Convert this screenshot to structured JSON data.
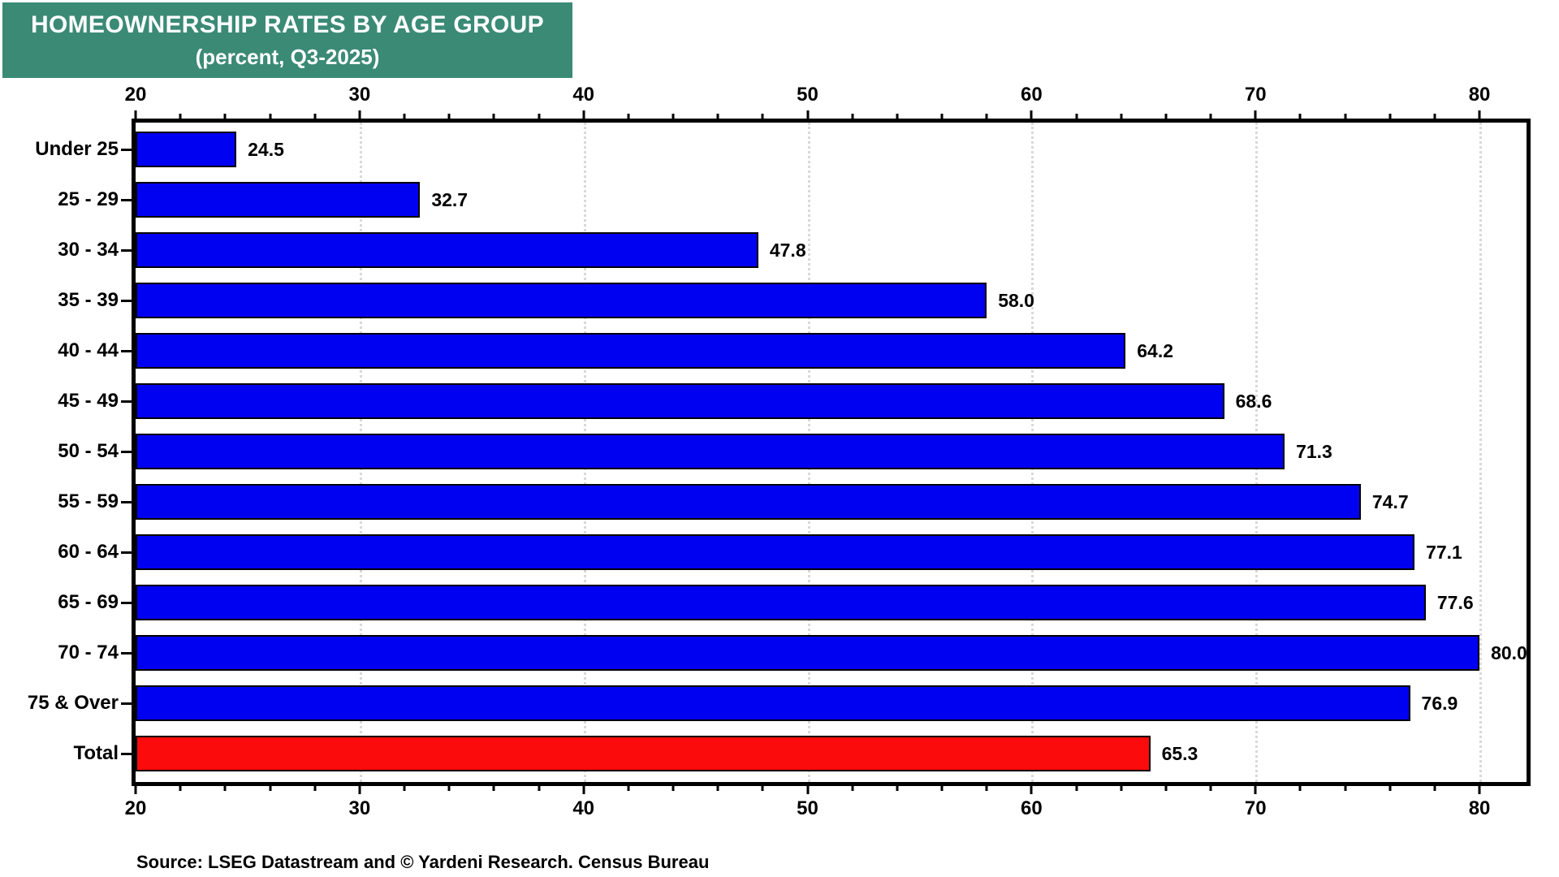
{
  "header": {
    "title_line1": "HOMEOWNERSHIP RATES BY AGE GROUP",
    "title_line2": "(percent, Q3-2025)"
  },
  "chart_data": {
    "type": "bar",
    "orientation": "horizontal",
    "title": "HOMEOWNERSHIP RATES BY AGE GROUP (percent, Q3-2025)",
    "categories": [
      "Under 25",
      "25 - 29",
      "30 - 34",
      "35 - 39",
      "40 - 44",
      "45 - 49",
      "50 - 54",
      "55 - 59",
      "60 - 64",
      "65 - 69",
      "70 - 74",
      "75 & Over",
      "Total"
    ],
    "values": [
      24.5,
      32.7,
      47.8,
      58.0,
      64.2,
      68.6,
      71.3,
      74.7,
      77.1,
      77.6,
      80.0,
      76.9,
      65.3
    ],
    "value_labels": [
      "24.5",
      "32.7",
      "47.8",
      "58.0",
      "64.2",
      "68.6",
      "71.3",
      "74.7",
      "77.1",
      "77.6",
      "80.0",
      "76.9",
      "65.3"
    ],
    "bar_colors": [
      "#0101f2",
      "#0101f2",
      "#0101f2",
      "#0101f2",
      "#0101f2",
      "#0101f2",
      "#0101f2",
      "#0101f2",
      "#0101f2",
      "#0101f2",
      "#0101f2",
      "#0101f2",
      "#fb0b0b"
    ],
    "xlim": [
      20,
      82.1
    ],
    "x_major_ticks": [
      20,
      30,
      40,
      50,
      60,
      70,
      80
    ],
    "x_minor_step": 2,
    "gridlines": [
      30,
      40,
      50,
      60,
      70,
      80
    ],
    "grid": true,
    "legend_position": "none",
    "xlabel": "",
    "ylabel": ""
  },
  "footer": {
    "source": "Source: LSEG Datastream and © Yardeni Research. Census Bureau"
  },
  "colors": {
    "title_bg": "#3b8a76",
    "title_text": "#ffffff",
    "bar_blue": "#0101f2",
    "bar_total_red": "#fb0b0b",
    "bar_border": "#000000",
    "grid": "#d9d9d9",
    "axis": "#000000",
    "background": "#ffffff"
  }
}
